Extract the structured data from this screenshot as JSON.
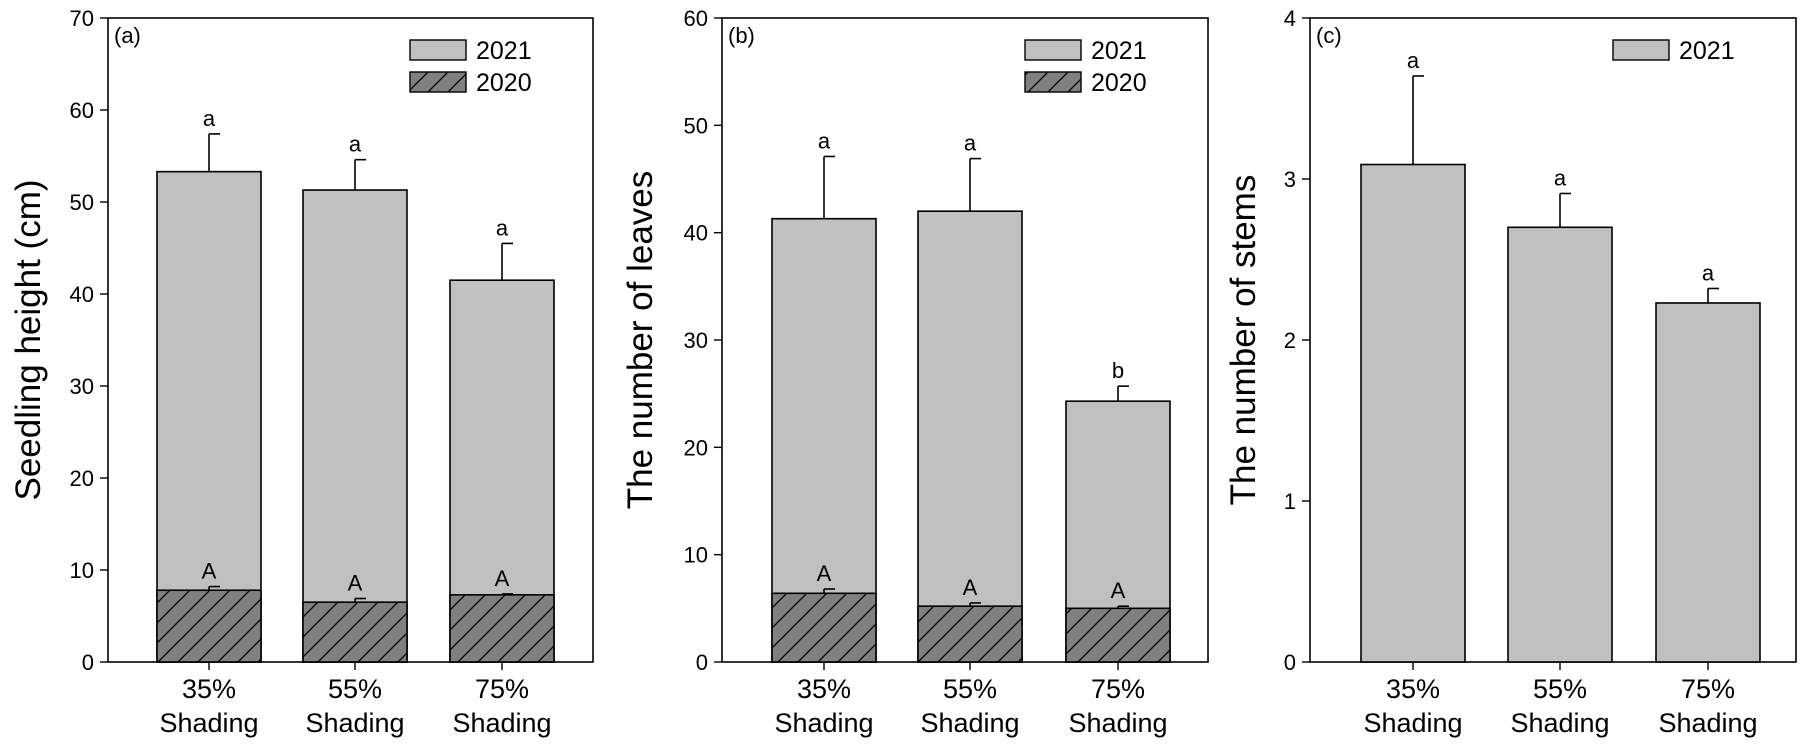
{
  "chart_data": [
    {
      "panel": "(a)",
      "type": "bar",
      "mode": "overlaid",
      "categories": [
        [
          "35%",
          "Shading"
        ],
        [
          "55%",
          "Shading"
        ],
        [
          "75%",
          "Shading"
        ]
      ],
      "ylabel": "Seedling height (cm)",
      "xlabel": "",
      "ylim": [
        0,
        70
      ],
      "yticks": [
        0,
        10,
        20,
        30,
        40,
        50,
        60,
        70
      ],
      "legend_position": "top-right",
      "series": [
        {
          "name": "2021",
          "pattern": "solid",
          "color": "#c0c0c0",
          "values": [
            53.3,
            51.3,
            41.5
          ],
          "errors": [
            4.1,
            3.3,
            4.0
          ],
          "labels": [
            "a",
            "a",
            "a"
          ]
        },
        {
          "name": "2020",
          "pattern": "hatch",
          "color": "#808080",
          "values": [
            7.8,
            6.5,
            7.3
          ],
          "errors": [
            0.4,
            0.4,
            0.1
          ],
          "labels": [
            "A",
            "A",
            "A"
          ]
        }
      ]
    },
    {
      "panel": "(b)",
      "type": "bar",
      "mode": "overlaid",
      "categories": [
        [
          "35%",
          "Shading"
        ],
        [
          "55%",
          "Shading"
        ],
        [
          "75%",
          "Shading"
        ]
      ],
      "ylabel": "The number of leaves",
      "xlabel": "",
      "ylim": [
        0,
        60
      ],
      "yticks": [
        0,
        10,
        20,
        30,
        40,
        50,
        60
      ],
      "legend_position": "top-right",
      "series": [
        {
          "name": "2021",
          "pattern": "solid",
          "color": "#c0c0c0",
          "values": [
            41.3,
            42.0,
            24.3
          ],
          "errors": [
            5.8,
            4.9,
            1.4
          ],
          "labels": [
            "a",
            "a",
            "b"
          ]
        },
        {
          "name": "2020",
          "pattern": "hatch",
          "color": "#808080",
          "values": [
            6.4,
            5.2,
            5.0
          ],
          "errors": [
            0.4,
            0.3,
            0.2
          ],
          "labels": [
            "A",
            "A",
            "A"
          ]
        }
      ]
    },
    {
      "panel": "(c)",
      "type": "bar",
      "mode": "overlaid",
      "categories": [
        [
          "35%",
          "Shading"
        ],
        [
          "55%",
          "Shading"
        ],
        [
          "75%",
          "Shading"
        ]
      ],
      "ylabel": "The number of stems",
      "xlabel": "",
      "ylim": [
        0,
        4
      ],
      "yticks": [
        0,
        1,
        2,
        3,
        4
      ],
      "legend_position": "top-right",
      "series": [
        {
          "name": "2021",
          "pattern": "solid",
          "color": "#c0c0c0",
          "values": [
            3.09,
            2.7,
            2.23
          ],
          "errors": [
            0.55,
            0.21,
            0.09
          ],
          "labels": [
            "a",
            "a",
            "a"
          ]
        }
      ]
    }
  ]
}
